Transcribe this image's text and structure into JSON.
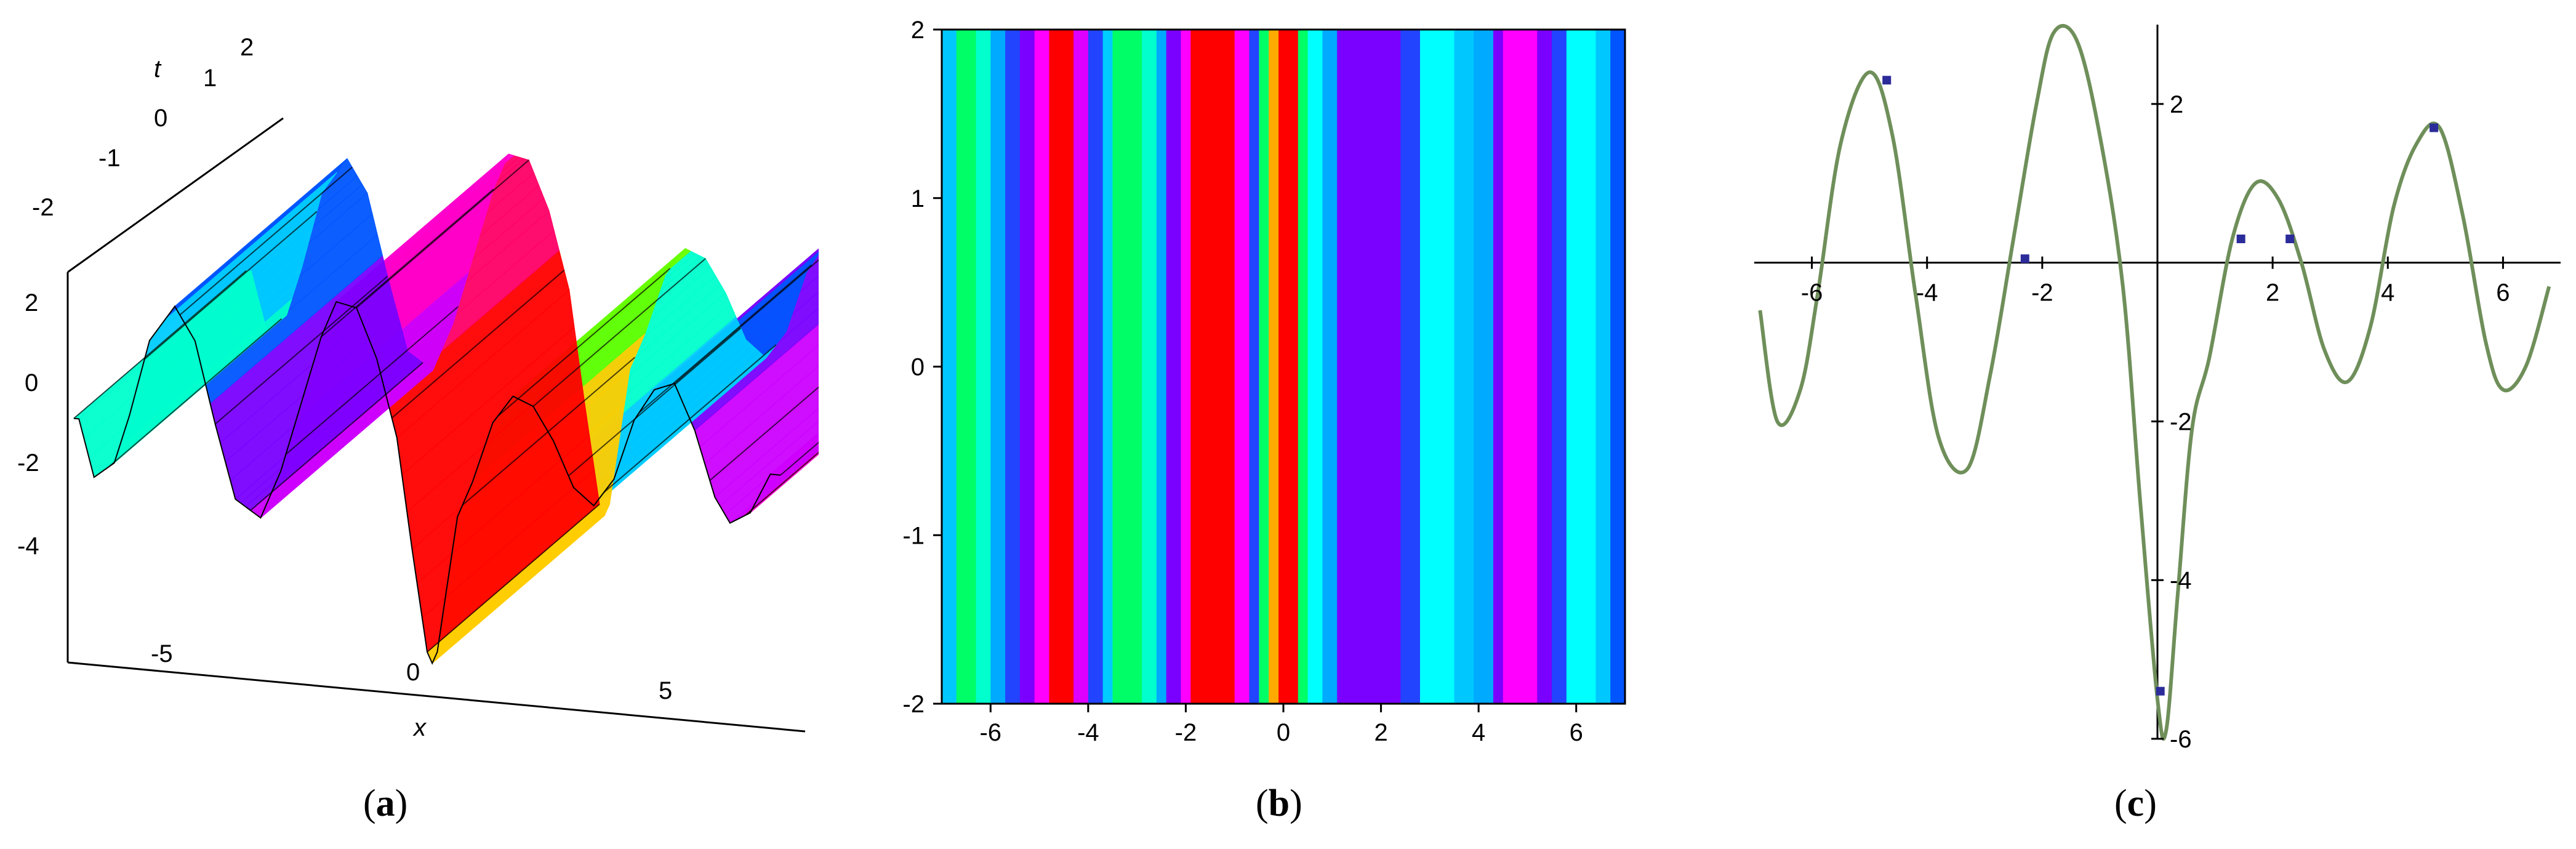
{
  "figure": {
    "panel_labels": [
      {
        "open": "(",
        "letter": "a",
        "close": ")"
      },
      {
        "open": "(",
        "letter": "b",
        "close": ")"
      },
      {
        "open": "(",
        "letter": "c",
        "close": ")"
      }
    ]
  },
  "chart_data": [
    {
      "type": "surface",
      "xlabel": "x",
      "tlabel": "t",
      "x_ticks": [
        "-5",
        "0",
        "5"
      ],
      "t_ticks": [
        "-2",
        "-1",
        "0",
        "1",
        "2"
      ],
      "z_ticks": [
        "2",
        "0",
        "-2",
        "-4"
      ],
      "xlim": [
        -7,
        7
      ],
      "tlim": [
        -2,
        2
      ],
      "zlim": [
        -6,
        3
      ],
      "colormap": [
        "#00ffcc",
        "#00ccff",
        "#0055ff",
        "#7a00ff",
        "#cc00ff",
        "#ff00cc",
        "#ff0066",
        "#ff0000",
        "#ffcc00",
        "#66ff00"
      ]
    },
    {
      "type": "heatmap",
      "xlim": [
        -7,
        7
      ],
      "ylim": [
        -2,
        2
      ],
      "x_ticks": [
        "-6",
        "-4",
        "-2",
        "0",
        "2",
        "4",
        "6"
      ],
      "y_ticks": [
        "2",
        "1",
        "0",
        "-1",
        "-2"
      ],
      "bands": [
        {
          "x0": -7.0,
          "x1": -6.7,
          "color": "#00c8ff"
        },
        {
          "x0": -6.7,
          "x1": -6.3,
          "color": "#00ff66"
        },
        {
          "x0": -6.3,
          "x1": -6.0,
          "color": "#00ffcc"
        },
        {
          "x0": -6.0,
          "x1": -5.7,
          "color": "#00aaff"
        },
        {
          "x0": -5.7,
          "x1": -5.4,
          "color": "#2244ff"
        },
        {
          "x0": -5.4,
          "x1": -5.1,
          "color": "#7a00ff"
        },
        {
          "x0": -5.1,
          "x1": -4.8,
          "color": "#ff00ff"
        },
        {
          "x0": -4.8,
          "x1": -4.3,
          "color": "#ff0000"
        },
        {
          "x0": -4.3,
          "x1": -4.0,
          "color": "#dd00ff"
        },
        {
          "x0": -4.0,
          "x1": -3.7,
          "color": "#2244ff"
        },
        {
          "x0": -3.7,
          "x1": -3.5,
          "color": "#00ccff"
        },
        {
          "x0": -3.5,
          "x1": -2.9,
          "color": "#00ff66"
        },
        {
          "x0": -2.9,
          "x1": -2.6,
          "color": "#00ffcc"
        },
        {
          "x0": -2.6,
          "x1": -2.4,
          "color": "#00aaff"
        },
        {
          "x0": -2.4,
          "x1": -2.1,
          "color": "#7a00ff"
        },
        {
          "x0": -2.1,
          "x1": -1.9,
          "color": "#ff00ff"
        },
        {
          "x0": -1.9,
          "x1": -1.0,
          "color": "#ff0000"
        },
        {
          "x0": -1.0,
          "x1": -0.7,
          "color": "#ff00ff"
        },
        {
          "x0": -0.7,
          "x1": -0.5,
          "color": "#2244ff"
        },
        {
          "x0": -0.5,
          "x1": -0.3,
          "color": "#00ff66"
        },
        {
          "x0": -0.3,
          "x1": -0.1,
          "color": "#ffaa00"
        },
        {
          "x0": -0.1,
          "x1": 0.3,
          "color": "#ff0000"
        },
        {
          "x0": 0.3,
          "x1": 0.5,
          "color": "#00ff66"
        },
        {
          "x0": 0.5,
          "x1": 0.8,
          "color": "#00ffff"
        },
        {
          "x0": 0.8,
          "x1": 1.1,
          "color": "#00aaff"
        },
        {
          "x0": 1.1,
          "x1": 2.4,
          "color": "#7a00ff"
        },
        {
          "x0": 2.4,
          "x1": 2.8,
          "color": "#2244ff"
        },
        {
          "x0": 2.8,
          "x1": 3.5,
          "color": "#00ffff"
        },
        {
          "x0": 3.5,
          "x1": 3.9,
          "color": "#00c8ff"
        },
        {
          "x0": 3.9,
          "x1": 4.3,
          "color": "#00aaff"
        },
        {
          "x0": 4.3,
          "x1": 4.5,
          "color": "#7a00ff"
        },
        {
          "x0": 4.5,
          "x1": 5.2,
          "color": "#ff00ff"
        },
        {
          "x0": 5.2,
          "x1": 5.5,
          "color": "#7a00ff"
        },
        {
          "x0": 5.5,
          "x1": 5.8,
          "color": "#2244ff"
        },
        {
          "x0": 5.8,
          "x1": 6.4,
          "color": "#00ffff"
        },
        {
          "x0": 6.4,
          "x1": 6.7,
          "color": "#00c8ff"
        },
        {
          "x0": 6.7,
          "x1": 7.0,
          "color": "#0055ff"
        }
      ]
    },
    {
      "type": "line",
      "xlim": [
        -7,
        7
      ],
      "ylim": [
        -6,
        3
      ],
      "x_ticks": [
        "-6",
        "-4",
        "-2",
        "2",
        "4",
        "6"
      ],
      "y_ticks": [
        "2",
        "-2",
        "-4",
        "-6"
      ],
      "line_color": "#6f8f5a",
      "marker_color": "#2b2b9a",
      "x": [
        -6.9,
        -6.6,
        -6.2,
        -5.9,
        -5.5,
        -5.0,
        -4.6,
        -4.2,
        -3.8,
        -3.3,
        -2.9,
        -2.5,
        -2.1,
        -1.8,
        -1.4,
        -1.0,
        -0.6,
        -0.3,
        0.0,
        0.15,
        0.35,
        0.6,
        0.9,
        1.3,
        1.7,
        2.1,
        2.5,
        2.9,
        3.3,
        3.7,
        4.1,
        4.5,
        4.9,
        5.3,
        5.7,
        6.0,
        6.4,
        6.8
      ],
      "y": [
        -0.6,
        -2.0,
        -1.6,
        -0.4,
        1.5,
        2.4,
        1.6,
        -0.4,
        -2.2,
        -2.6,
        -1.4,
        0.3,
        2.0,
        2.9,
        2.8,
        1.6,
        -0.3,
        -3.0,
        -5.5,
        -5.9,
        -4.2,
        -2.1,
        -1.2,
        0.3,
        1.0,
        0.8,
        0.0,
        -1.1,
        -1.5,
        -0.8,
        0.7,
        1.5,
        1.7,
        0.6,
        -1.0,
        -1.6,
        -1.3,
        -0.3
      ],
      "markers": [
        {
          "x": -4.7,
          "y": 2.3
        },
        {
          "x": -2.3,
          "y": 0.05
        },
        {
          "x": 1.45,
          "y": 0.3
        },
        {
          "x": 2.3,
          "y": 0.3
        },
        {
          "x": 4.8,
          "y": 1.7
        },
        {
          "x": 0.05,
          "y": -5.4
        }
      ]
    }
  ]
}
